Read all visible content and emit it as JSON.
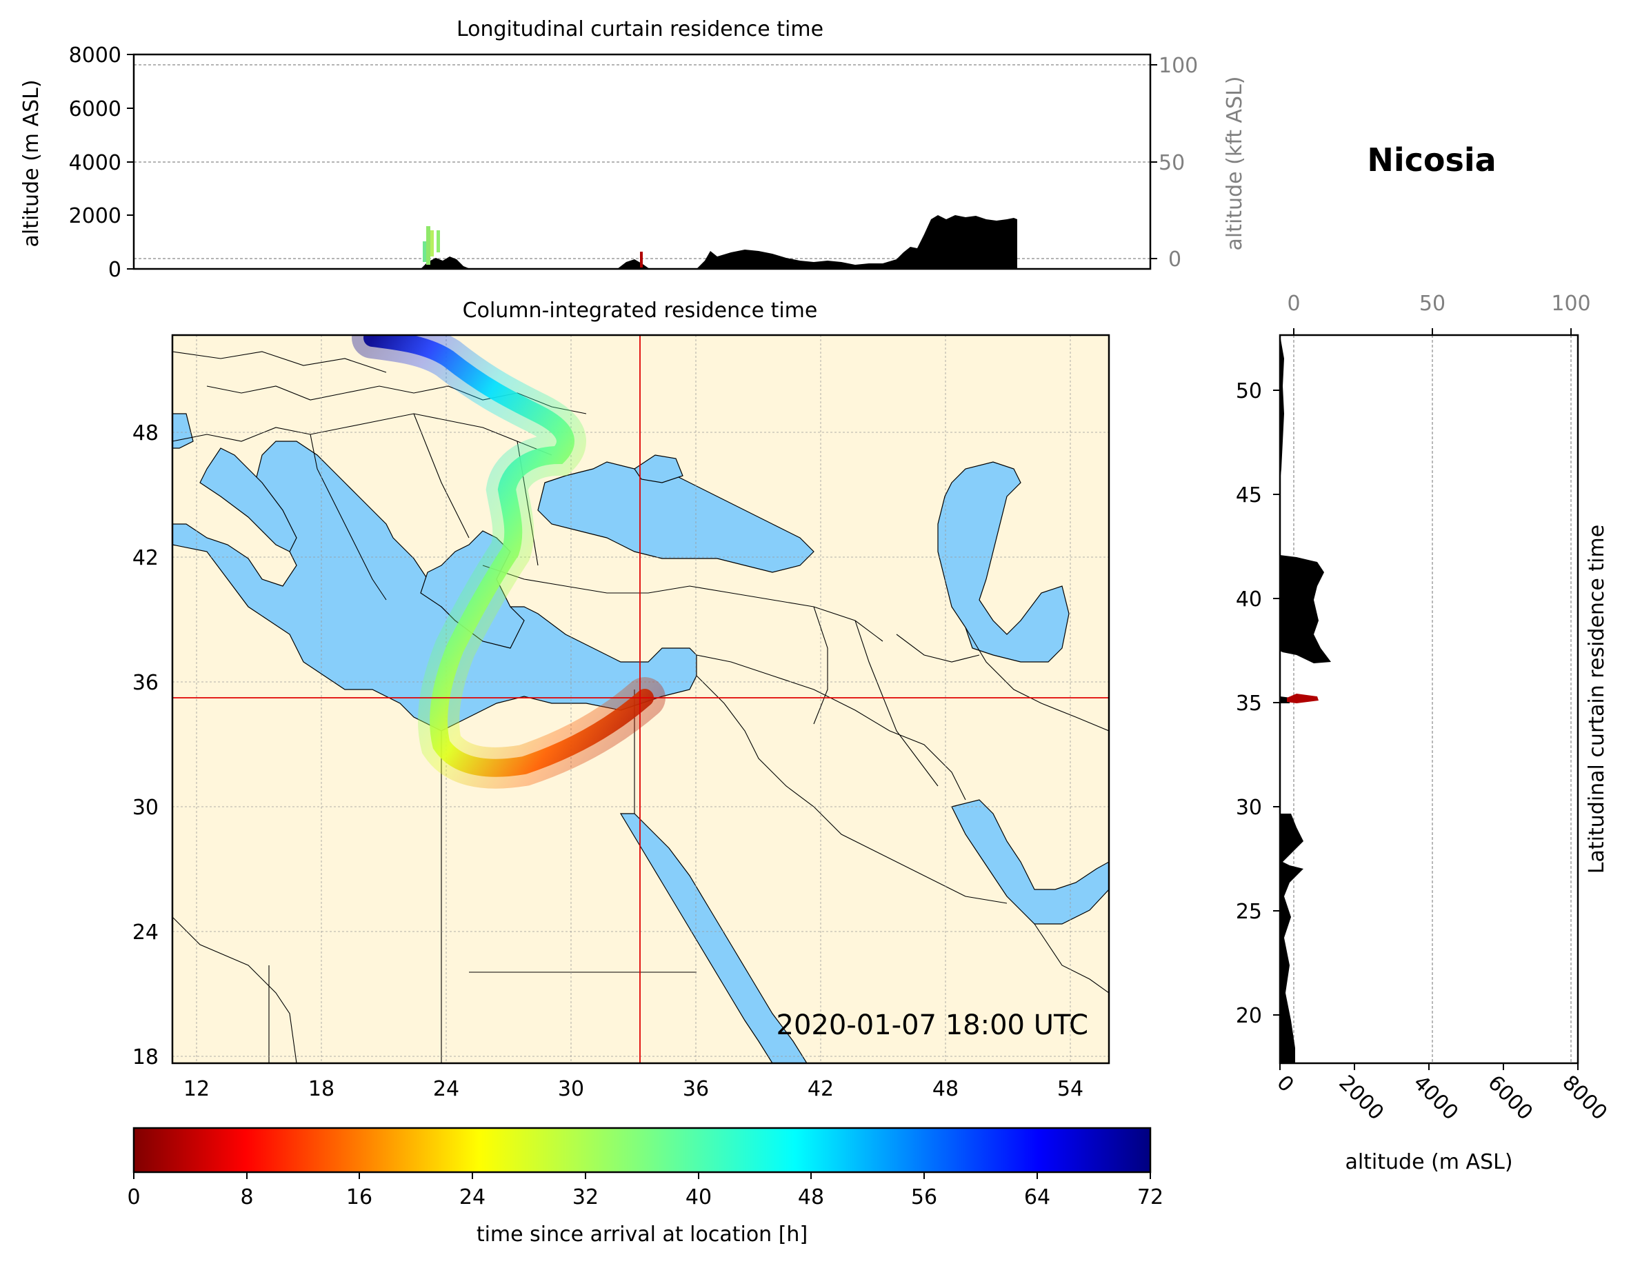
{
  "location_title": "Nicosia",
  "timestamp": "2020-01-07 18:00 UTC",
  "longitudinal_panel": {
    "title": "Longitudinal curtain residence time",
    "ylabel_left": "altitude (m ASL)",
    "ylabel_right": "altitude (kft ASL)",
    "yticks_left": [
      "0",
      "2000",
      "4000",
      "6000",
      "8000"
    ],
    "yticks_right": [
      "0",
      "50",
      "100"
    ]
  },
  "map_panel": {
    "title": "Column-integrated residence time",
    "lon_ticks": [
      "12",
      "18",
      "24",
      "30",
      "36",
      "42",
      "48",
      "54"
    ],
    "lat_ticks": [
      "18",
      "24",
      "30",
      "36",
      "42",
      "48"
    ],
    "lon_range": [
      11,
      56
    ],
    "lat_range": [
      18,
      53
    ],
    "receptor": {
      "lon": 33.4,
      "lat": 35.2
    },
    "colors": {
      "land": "#fff6db",
      "sea": "#87cefa",
      "crosshair": "#e00000"
    }
  },
  "latitudinal_panel": {
    "ylabel": "Latitudinal curtain residence time",
    "xlabel": "altitude (m ASL)",
    "xticks_bottom": [
      "0",
      "2000",
      "4000",
      "6000",
      "8000"
    ],
    "xticks_top": [
      "0",
      "50",
      "100"
    ],
    "yticks": [
      "20",
      "25",
      "30",
      "35",
      "40",
      "45",
      "50"
    ]
  },
  "colorbar": {
    "label": "time since arrival at location [h]",
    "ticks": [
      "0",
      "8",
      "16",
      "24",
      "32",
      "40",
      "48",
      "56",
      "64",
      "72"
    ],
    "range": [
      0,
      72
    ],
    "colormap": "jet_r"
  }
}
